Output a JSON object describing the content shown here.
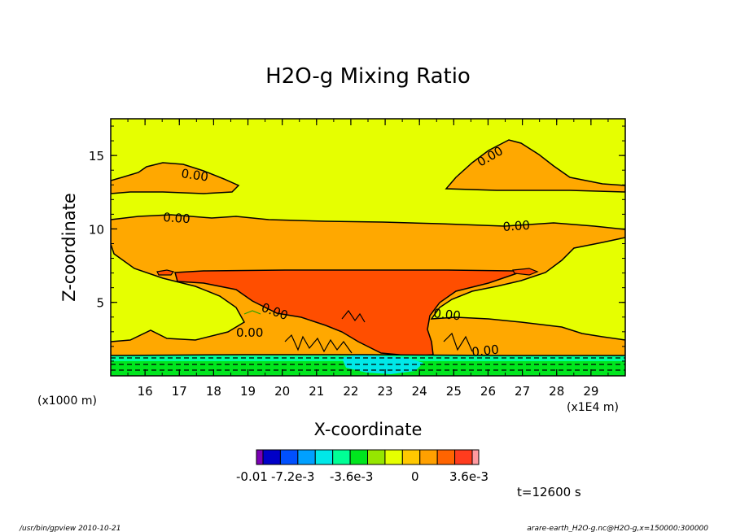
{
  "chart_data": {
    "type": "contour",
    "title": "H2O-g Mixing Ratio",
    "xlabel": "X-coordinate",
    "ylabel": "Z-coordinate",
    "x_unit_note": "(x1E4 m)",
    "y_unit_note": "(x1000 m)",
    "xlim": [
      15.0,
      30.0
    ],
    "ylim": [
      0.0,
      17.5
    ],
    "x_ticks": [
      16,
      17,
      18,
      19,
      20,
      21,
      22,
      23,
      24,
      25,
      26,
      27,
      28,
      29
    ],
    "y_ticks": [
      5,
      10,
      15
    ],
    "contour_labels": [
      "0.00",
      "0.00",
      "0.00",
      "0.00",
      "0.00",
      "0.00",
      "0.00",
      "0.00"
    ],
    "colorbar": {
      "colors": [
        "#7b00b4",
        "#0000c8",
        "#0050ff",
        "#00a0ff",
        "#00e8e8",
        "#00ff96",
        "#00e61e",
        "#96e600",
        "#e6ff00",
        "#ffc800",
        "#ffa000",
        "#ff6400",
        "#ff3c1e",
        "#ff9aa0"
      ],
      "labels": [
        "-0.01",
        "-7.2e-3",
        "-3.6e-3",
        "0",
        "3.6e-3"
      ]
    },
    "time_label": "t=12600 s"
  },
  "footer": {
    "left": "/usr/bin/gpview   2010-10-21",
    "right": "arare-earth_H2O-g.nc@H2O-g,x=150000:300000"
  }
}
